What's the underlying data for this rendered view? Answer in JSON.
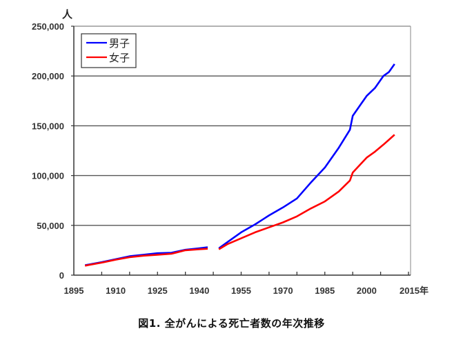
{
  "chart_data": {
    "type": "line",
    "title": "図1. 全がんによる死亡者数の年次推移",
    "xlabel": "年",
    "ylabel": "人",
    "xlim": [
      1895,
      2015
    ],
    "ylim": [
      0,
      250000
    ],
    "x_tick_labels": [
      "1895",
      "1910",
      "1925",
      "1940",
      "1955",
      "1970",
      "1985",
      "2000",
      "2015年"
    ],
    "x_tick_values": [
      1895,
      1910,
      1925,
      1940,
      1955,
      1970,
      1985,
      2000,
      2015
    ],
    "y_tick_labels": [
      "0",
      "50,000",
      "100,000",
      "150,000",
      "200,000",
      "250,000"
    ],
    "y_tick_values": [
      0,
      50000,
      100000,
      150000,
      200000,
      250000
    ],
    "grid": "horizontal",
    "legend_position": "top-left",
    "series": [
      {
        "name": "男子",
        "color": "#0000ff",
        "segments": [
          {
            "x": [
              1899,
              1905,
              1910,
              1915,
              1920,
              1925,
              1930,
              1935,
              1940,
              1943
            ],
            "y": [
              10000,
              13000,
              16000,
              19000,
              20500,
              22000,
              22500,
              25500,
              27000,
              28000
            ]
          },
          {
            "x": [
              1947,
              1950,
              1955,
              1960,
              1965,
              1970,
              1975,
              1980,
              1985,
              1990,
              1994,
              1995,
              1998,
              2000,
              2003,
              2006,
              2008,
              2010
            ],
            "y": [
              27000,
              33000,
              43000,
              51000,
              60000,
              68000,
              77000,
              93000,
              108000,
              128000,
              146000,
              160000,
              172000,
              180000,
              188000,
              200000,
              204000,
              212000
            ]
          }
        ]
      },
      {
        "name": "女子",
        "color": "#ff0000",
        "segments": [
          {
            "x": [
              1899,
              1905,
              1910,
              1915,
              1920,
              1925,
              1930,
              1935,
              1940,
              1943
            ],
            "y": [
              9500,
              12500,
              15500,
              18000,
              19500,
              20500,
              21500,
              25000,
              26000,
              26500
            ]
          },
          {
            "x": [
              1947,
              1950,
              1955,
              1960,
              1965,
              1970,
              1975,
              1980,
              1985,
              1990,
              1994,
              1995,
              1998,
              2000,
              2003,
              2006,
              2008,
              2010
            ],
            "y": [
              26000,
              31000,
              37000,
              43000,
              48000,
              53000,
              59000,
              67000,
              74000,
              84000,
              95000,
              103000,
              112000,
              118000,
              124000,
              131000,
              136000,
              141000
            ]
          }
        ]
      }
    ]
  },
  "caption": "図1. 全がんによる死亡者数の年次推移"
}
